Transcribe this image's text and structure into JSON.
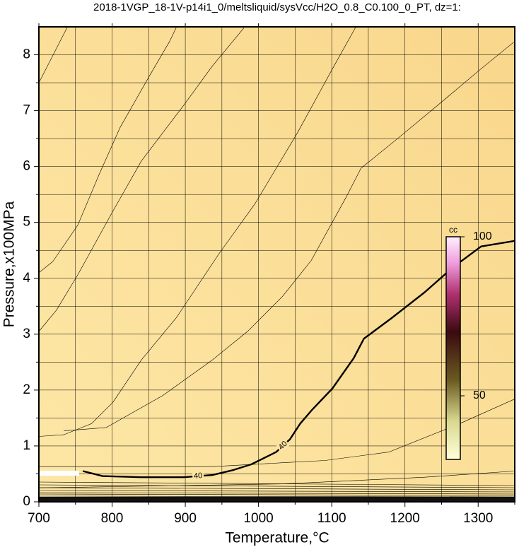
{
  "chart_data": {
    "type": "contour",
    "title": "2018-1VGP_18-1V-p14i1_0/meltsliquid/sysVcc/H2O_0.8_C0.100_0_PT, dz=1:",
    "x_label": "Temperature,°C",
    "y_label": "Pressure,x100MPa",
    "xlim": [
      700,
      1350
    ],
    "ylim": [
      0,
      8.5
    ],
    "xticks": [
      700,
      800,
      900,
      1000,
      1100,
      1200,
      1300
    ],
    "yticks": [
      0,
      1,
      2,
      3,
      4,
      5,
      6,
      7,
      8
    ],
    "xminor_ticks": [
      750,
      850,
      950,
      1050,
      1150,
      1250,
      1350
    ],
    "yminor_ticks": [
      0.5,
      1.5,
      2.5,
      3.5,
      4.5,
      5.5,
      6.5,
      7.5
    ],
    "grid": true,
    "series": [
      {
        "x": [
          700,
          739
        ],
        "values": [
          7.5,
          8.5
        ],
        "color": "#000000",
        "width": 0.6
      },
      {
        "x": [
          700,
          719,
          753,
          782,
          811,
          850,
          879,
          888
        ],
        "values": [
          4.1,
          4.3,
          4.95,
          5.85,
          6.7,
          7.6,
          8.25,
          8.5
        ],
        "color": "#000000",
        "width": 0.6
      },
      {
        "x": [
          700,
          724,
          753,
          801,
          840,
          898,
          937,
          980
        ],
        "values": [
          3.05,
          3.43,
          4.06,
          5.2,
          6.1,
          7.1,
          7.8,
          8.48
        ],
        "color": "#000000",
        "width": 0.6
      },
      {
        "x": [
          700,
          734,
          772,
          801,
          840,
          888,
          946,
          995,
          1053,
          1101,
          1133
        ],
        "values": [
          1.17,
          1.2,
          1.4,
          1.78,
          2.54,
          3.3,
          4.44,
          5.33,
          6.6,
          7.75,
          8.5
        ],
        "color": "#000000",
        "width": 0.6
      },
      {
        "x": [
          734,
          792,
          869,
          937,
          985,
          1033,
          1072,
          1120,
          1140,
          1188,
          1246,
          1304,
          1349
        ],
        "values": [
          1.27,
          1.33,
          1.9,
          2.54,
          3.05,
          3.68,
          4.32,
          5.46,
          5.97,
          6.48,
          7.11,
          7.75,
          8.23
        ],
        "color": "#000000",
        "width": 0.6
      },
      {
        "x": [
          700,
          937,
          1033,
          1091,
          1178,
          1275,
          1350
        ],
        "values": [
          0.63,
          0.63,
          0.7,
          0.74,
          0.89,
          1.4,
          1.84
        ],
        "color": "#000000",
        "width": 0.6
      },
      {
        "x": [
          700,
          1033,
          1227,
          1350
        ],
        "values": [
          0.25,
          0.32,
          0.44,
          0.55
        ],
        "color": "#000000",
        "width": 0.6
      },
      {
        "name": "40",
        "x": [
          760,
          787,
          840,
          898,
          937,
          966,
          990,
          1024,
          1043,
          1057,
          1072,
          1101,
          1130,
          1144,
          1183,
          1227,
          1265,
          1304,
          1350
        ],
        "values": [
          0.55,
          0.46,
          0.44,
          0.44,
          0.48,
          0.57,
          0.67,
          0.89,
          1.12,
          1.4,
          1.63,
          2.03,
          2.57,
          2.92,
          3.3,
          3.75,
          4.19,
          4.57,
          4.67
        ],
        "color": "#000000",
        "width": 2.4,
        "label_at": [
          3,
          7
        ]
      }
    ],
    "colorbar": {
      "label": "cc",
      "lim": [
        30,
        100
      ],
      "ticks": [
        50,
        100
      ],
      "stops": [
        {
          "value": 30,
          "color": "#ffffd8"
        },
        {
          "value": 42,
          "color": "#d8d890"
        },
        {
          "value": 55,
          "color": "#6a5a20"
        },
        {
          "value": 70,
          "color": "#3a0a10"
        },
        {
          "value": 82,
          "color": "#b03070"
        },
        {
          "value": 92,
          "color": "#f0a0e0"
        },
        {
          "value": 100,
          "color": "#fff0ff"
        }
      ]
    }
  }
}
